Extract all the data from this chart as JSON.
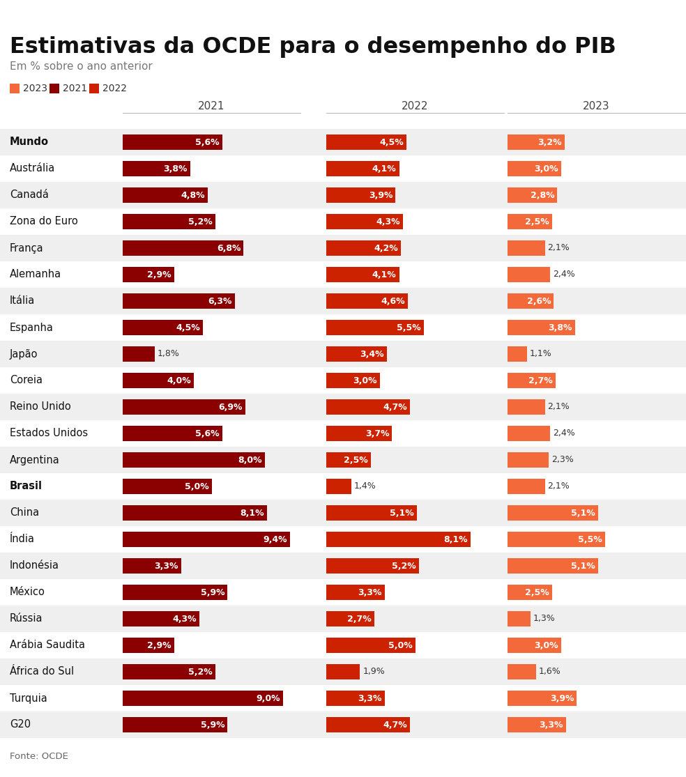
{
  "title": "Estimativas da OCDE para o desempenho do PIB",
  "subtitle": "Em % sobre o ano anterior",
  "source": "Fonte: OCDE",
  "legend": [
    {
      "label": "2023",
      "color": "#F4693A"
    },
    {
      "label": "2021",
      "color": "#8B0000"
    },
    {
      "label": "2022",
      "color": "#CC2200"
    }
  ],
  "countries": [
    "Mundo",
    "Austrália",
    "Canadá",
    "Zona do Euro",
    "França",
    "Alemanha",
    "Itália",
    "Espanha",
    "Japão",
    "Coreia",
    "Reino Unido",
    "Estados Unidos",
    "Argentina",
    "Brasil",
    "China",
    "Índia",
    "Indonésia",
    "México",
    "Rússia",
    "Arábia Saudita",
    "África do Sul",
    "Turquia",
    "G20"
  ],
  "bold_rows": [
    "Mundo",
    "Brasil"
  ],
  "values_2021": [
    5.6,
    3.8,
    4.8,
    5.2,
    6.8,
    2.9,
    6.3,
    4.5,
    1.8,
    4.0,
    6.9,
    5.6,
    8.0,
    5.0,
    8.1,
    9.4,
    3.3,
    5.9,
    4.3,
    2.9,
    5.2,
    9.0,
    5.9
  ],
  "values_2022": [
    4.5,
    4.1,
    3.9,
    4.3,
    4.2,
    4.1,
    4.6,
    5.5,
    3.4,
    3.0,
    4.7,
    3.7,
    2.5,
    1.4,
    5.1,
    8.1,
    5.2,
    3.3,
    2.7,
    5.0,
    1.9,
    3.3,
    4.7
  ],
  "values_2023": [
    3.2,
    3.0,
    2.8,
    2.5,
    2.1,
    2.4,
    2.6,
    3.8,
    1.1,
    2.7,
    2.1,
    2.4,
    2.3,
    2.1,
    5.1,
    5.5,
    5.1,
    2.5,
    1.3,
    3.0,
    1.6,
    3.9,
    3.3
  ],
  "color_2021": "#8B0000",
  "color_2022": "#CC2200",
  "color_2023": "#F4693A",
  "bg_color": "#FFFFFF",
  "row_bg_even": "#EFEFEF",
  "row_bg_odd": "#FFFFFF",
  "max_val": 10.0,
  "inside_threshold": 2.5
}
